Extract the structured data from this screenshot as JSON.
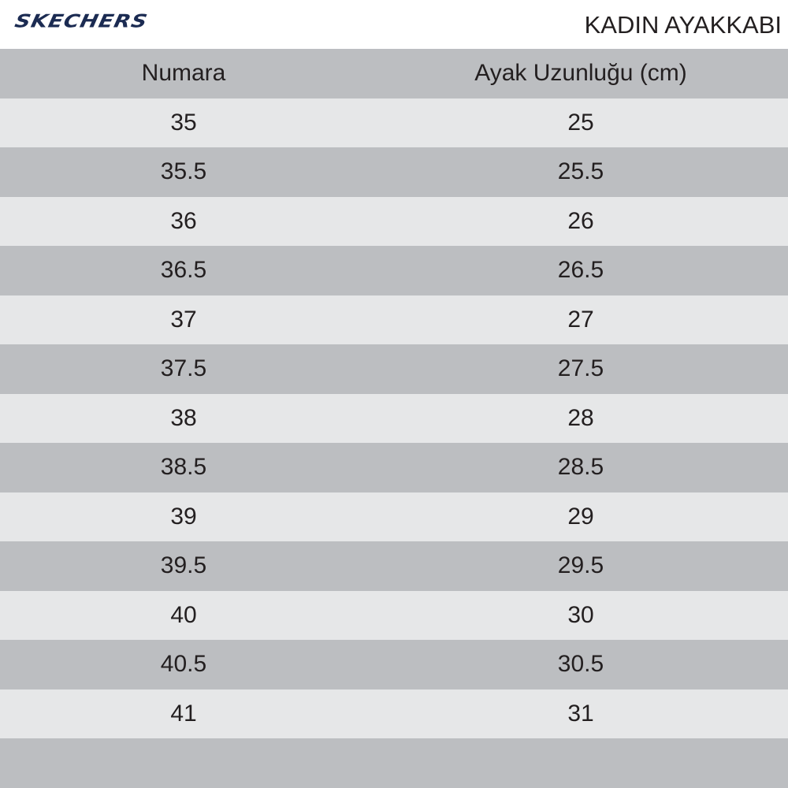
{
  "brand": {
    "logo_text": "SKECHERS",
    "color": "#1b2b52"
  },
  "title": "KADIN AYAKKABI",
  "colors": {
    "row_dark": "#bcbec1",
    "row_light": "#e6e7e8"
  },
  "table": {
    "headers": [
      "Numara",
      "Ayak Uzunluğu (cm)"
    ],
    "rows": [
      [
        "35",
        "25"
      ],
      [
        "35.5",
        "25.5"
      ],
      [
        "36",
        "26"
      ],
      [
        "36.5",
        "26.5"
      ],
      [
        "37",
        "27"
      ],
      [
        "37.5",
        "27.5"
      ],
      [
        "38",
        "28"
      ],
      [
        "38.5",
        "28.5"
      ],
      [
        "39",
        "29"
      ],
      [
        "39.5",
        "29.5"
      ],
      [
        "40",
        "30"
      ],
      [
        "40.5",
        "30.5"
      ],
      [
        "41",
        "31"
      ]
    ]
  }
}
